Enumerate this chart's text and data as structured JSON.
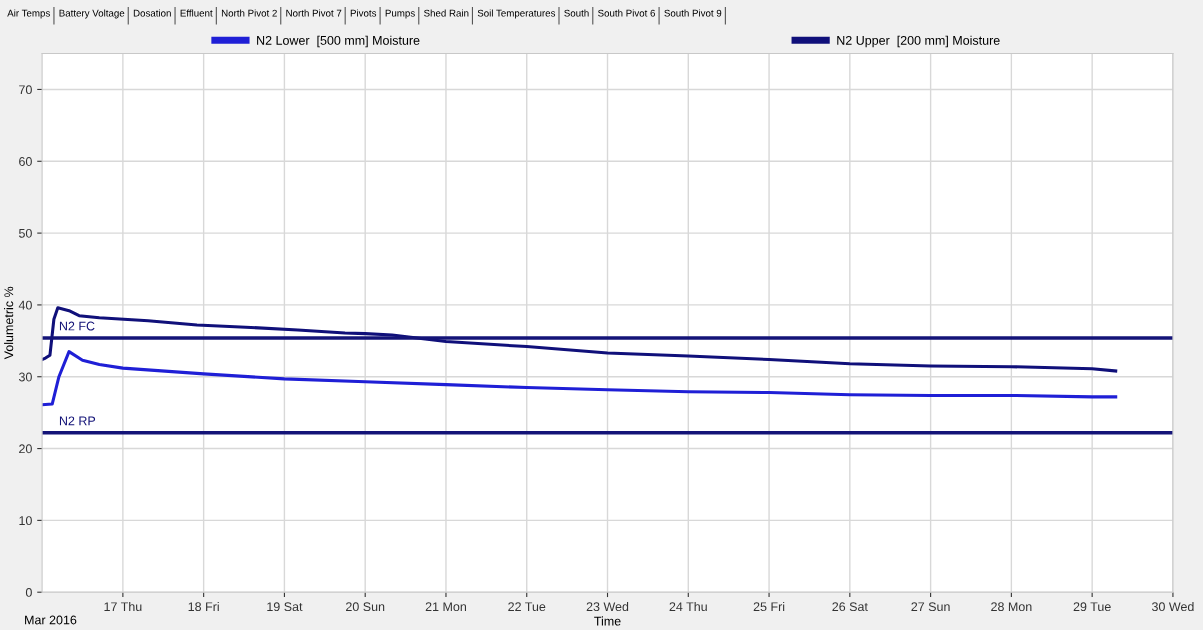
{
  "chart_data": {
    "type": "line",
    "xlabel": "Time",
    "ylabel": "Volumetric %",
    "xlim": [
      "2016-03-16",
      "2016-03-30"
    ],
    "xticks": [
      {
        "value": "2016-03-17",
        "label": "17 Thu"
      },
      {
        "value": "2016-03-18",
        "label": "18 Fri"
      },
      {
        "value": "2016-03-19",
        "label": "19 Sat"
      },
      {
        "value": "2016-03-20",
        "label": "20 Sun"
      },
      {
        "value": "2016-03-21",
        "label": "21 Mon"
      },
      {
        "value": "2016-03-22",
        "label": "22 Tue"
      },
      {
        "value": "2016-03-23",
        "label": "23 Wed"
      },
      {
        "value": "2016-03-24",
        "label": "24 Thu"
      },
      {
        "value": "2016-03-25",
        "label": "25 Fri"
      },
      {
        "value": "2016-03-26",
        "label": "26 Sat"
      },
      {
        "value": "2016-03-27",
        "label": "27 Sun"
      },
      {
        "value": "2016-03-28",
        "label": "28 Mon"
      },
      {
        "value": "2016-03-29",
        "label": "29 Tue"
      },
      {
        "value": "2016-03-30",
        "label": "30 Wed"
      }
    ],
    "ylim": [
      0,
      75
    ],
    "yticks": [
      0,
      10,
      20,
      30,
      40,
      50,
      60,
      70
    ],
    "grid": true,
    "legend": "top",
    "marker": "none",
    "line_style": "solid",
    "series": [
      {
        "name": "N2 Lower  [500 mm] Moisture",
        "color": "#1f1fd6",
        "x": [
          "2016-03-16T00:00",
          "2016-03-16T03:00",
          "2016-03-16T05:00",
          "2016-03-16T08:00",
          "2016-03-16T12:00",
          "2016-03-16T17:00",
          "2016-03-17T00:00",
          "2016-03-18T00:00",
          "2016-03-19T00:00",
          "2016-03-20T00:00",
          "2016-03-21T00:00",
          "2016-03-22T00:00",
          "2016-03-23T00:00",
          "2016-03-24T00:00",
          "2016-03-25T00:00",
          "2016-03-26T00:00",
          "2016-03-27T00:00",
          "2016-03-28T00:00",
          "2016-03-29T00:00",
          "2016-03-29T07:00"
        ],
        "values": [
          26.1,
          26.2,
          30.0,
          33.5,
          32.3,
          31.7,
          31.2,
          30.4,
          29.7,
          29.3,
          28.9,
          28.5,
          28.2,
          27.9,
          27.8,
          27.5,
          27.4,
          27.4,
          27.2,
          27.2
        ]
      },
      {
        "name": "N2 Upper  [200 mm] Moisture",
        "color": "#10107a",
        "x": [
          "2016-03-16T00:00",
          "2016-03-16T01:00",
          "2016-03-16T02:20",
          "2016-03-16T03:30",
          "2016-03-16T04:40",
          "2016-03-16T08:00",
          "2016-03-16T11:00",
          "2016-03-16T17:00",
          "2016-03-17T07:30",
          "2016-03-17T22:00",
          "2016-03-18T12:30",
          "2016-03-19T04:00",
          "2016-03-19T18:00",
          "2016-03-20T00:00",
          "2016-03-20T08:00",
          "2016-03-21T00:00",
          "2016-03-22T00:00",
          "2016-03-23T00:00",
          "2016-03-24T00:00",
          "2016-03-25T00:00",
          "2016-03-26T00:00",
          "2016-03-27T00:00",
          "2016-03-28T00:00",
          "2016-03-29T00:00",
          "2016-03-29T07:00"
        ],
        "values": [
          32.4,
          32.6,
          33.0,
          38.0,
          39.6,
          39.2,
          38.5,
          38.2,
          37.8,
          37.2,
          36.9,
          36.5,
          36.1,
          36.0,
          35.8,
          34.9,
          34.2,
          33.3,
          32.9,
          32.4,
          31.8,
          31.5,
          31.4,
          31.1,
          30.8
        ]
      }
    ],
    "ref_lines": [
      {
        "axis": "y",
        "value": 35.4,
        "label": "N2 FC",
        "color": "#141478"
      },
      {
        "axis": "y",
        "value": 22.2,
        "label": "N2 RP",
        "color": "#141478"
      }
    ],
    "annotations": [
      "Air Temps",
      "Battery Voltage",
      "Dosation",
      "Effluent",
      "North Pivot 2",
      "North Pivot 7",
      "Pivots",
      "Pumps",
      "Shed Rain",
      "Soil Temperatures",
      "South",
      "South Pivot 6",
      "South Pivot 9",
      "Mar 2016"
    ]
  }
}
